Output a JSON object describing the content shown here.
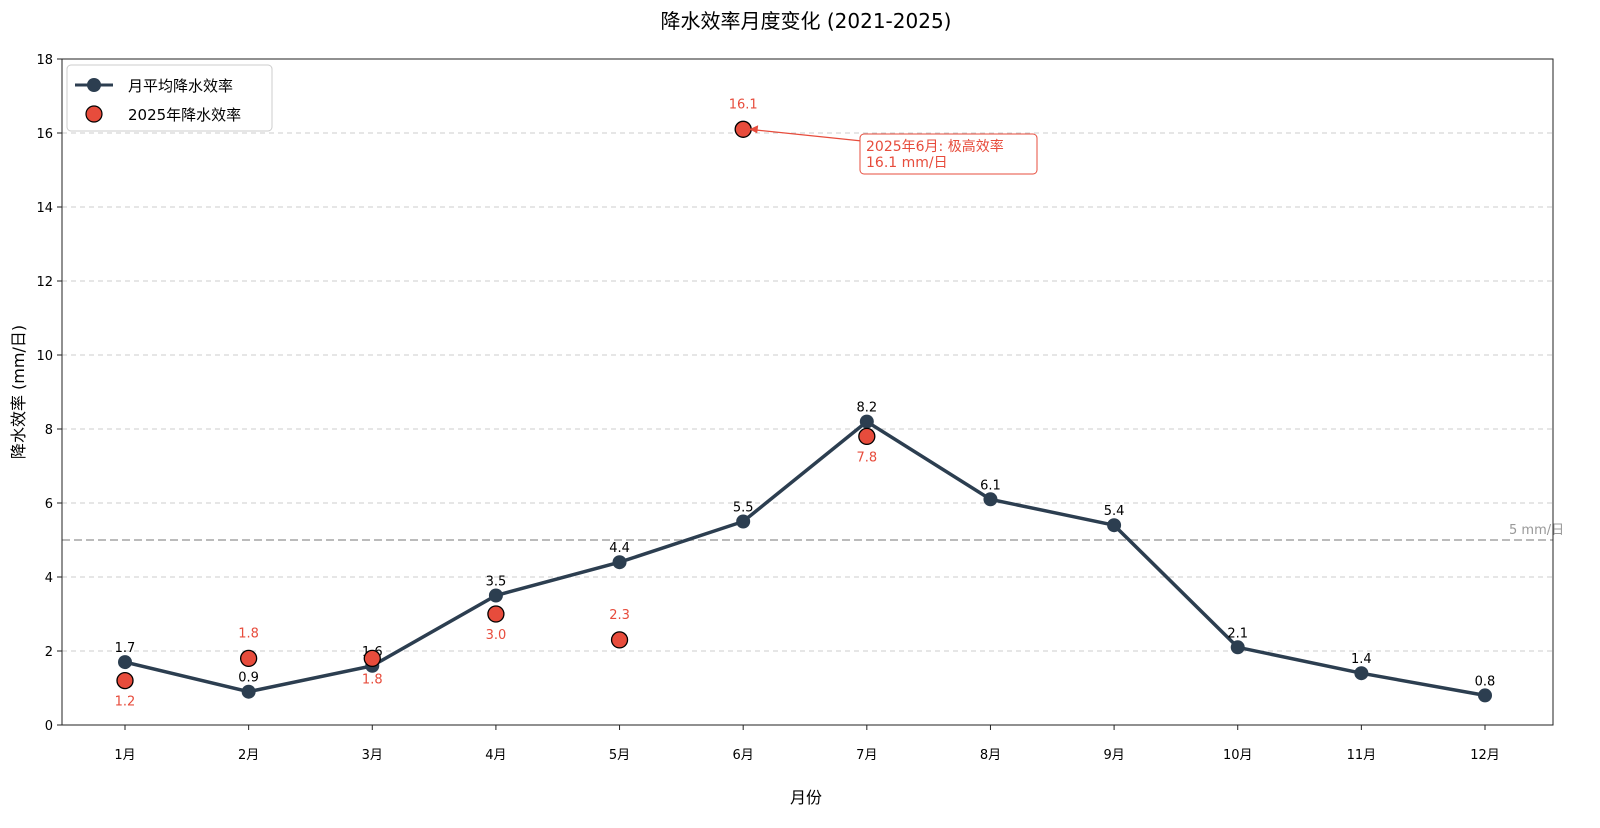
{
  "chart_data": {
    "type": "line",
    "title": "降水效率月度变化 (2021-2025)",
    "xlabel": "月份",
    "ylabel": "降水效率 (mm/日)",
    "categories": [
      "1月",
      "2月",
      "3月",
      "4月",
      "5月",
      "6月",
      "7月",
      "8月",
      "9月",
      "10月",
      "11月",
      "12月"
    ],
    "ylim": [
      0,
      18
    ],
    "yticks": [
      0,
      2,
      4,
      6,
      8,
      10,
      12,
      14,
      16,
      18
    ],
    "grid": "horizontal dashed",
    "legend_position": "top-left",
    "series": [
      {
        "name": "月平均降水效率",
        "kind": "line",
        "color": "#2c3e50",
        "values": [
          1.7,
          0.9,
          1.6,
          3.5,
          4.4,
          5.5,
          8.2,
          6.1,
          5.4,
          2.1,
          1.4,
          0.8
        ]
      },
      {
        "name": "2025年降水效率",
        "kind": "scatter",
        "color": "#e74c3c",
        "values": [
          1.2,
          1.8,
          1.8,
          3.0,
          2.3,
          16.1,
          7.8,
          null,
          null,
          null,
          null,
          null
        ]
      }
    ],
    "reference_line": {
      "value": 5,
      "label": "5 mm/日",
      "color": "#bbbbbb"
    },
    "annotation": {
      "month_index": 5,
      "value": 16.1,
      "lines": [
        "2025年6月: 极高效率",
        "16.1 mm/日"
      ],
      "color": "#e74c3c"
    }
  }
}
